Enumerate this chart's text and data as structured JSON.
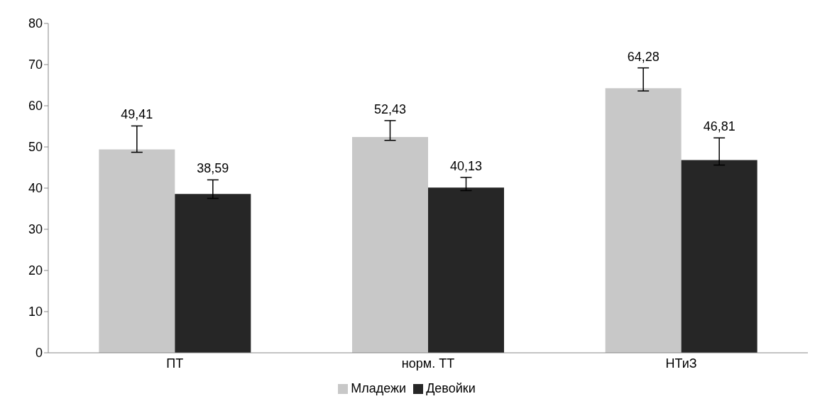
{
  "chart_data": {
    "type": "bar",
    "categories": [
      "ПТ",
      "норм. ТТ",
      "НТиЗ"
    ],
    "series": [
      {
        "name": "Младежи",
        "color": "#c8c8c8",
        "values": [
          49.41,
          52.43,
          64.28
        ],
        "errors": [
          [
            48.7,
            55.1
          ],
          [
            51.6,
            56.4
          ],
          [
            63.6,
            69.2
          ]
        ],
        "value_labels": [
          "49,41",
          "52,43",
          "64,28"
        ]
      },
      {
        "name": "Девойки",
        "color": "#262626",
        "values": [
          38.59,
          40.13,
          46.81
        ],
        "errors": [
          [
            37.5,
            42.0
          ],
          [
            39.4,
            42.6
          ],
          [
            45.6,
            52.2
          ]
        ],
        "value_labels": [
          "38,59",
          "40,13",
          "46,81"
        ]
      }
    ],
    "ylim": [
      0,
      80
    ],
    "yticks": [
      0,
      10,
      20,
      30,
      40,
      50,
      60,
      70,
      80
    ],
    "grid": false,
    "legend": "bottom"
  }
}
